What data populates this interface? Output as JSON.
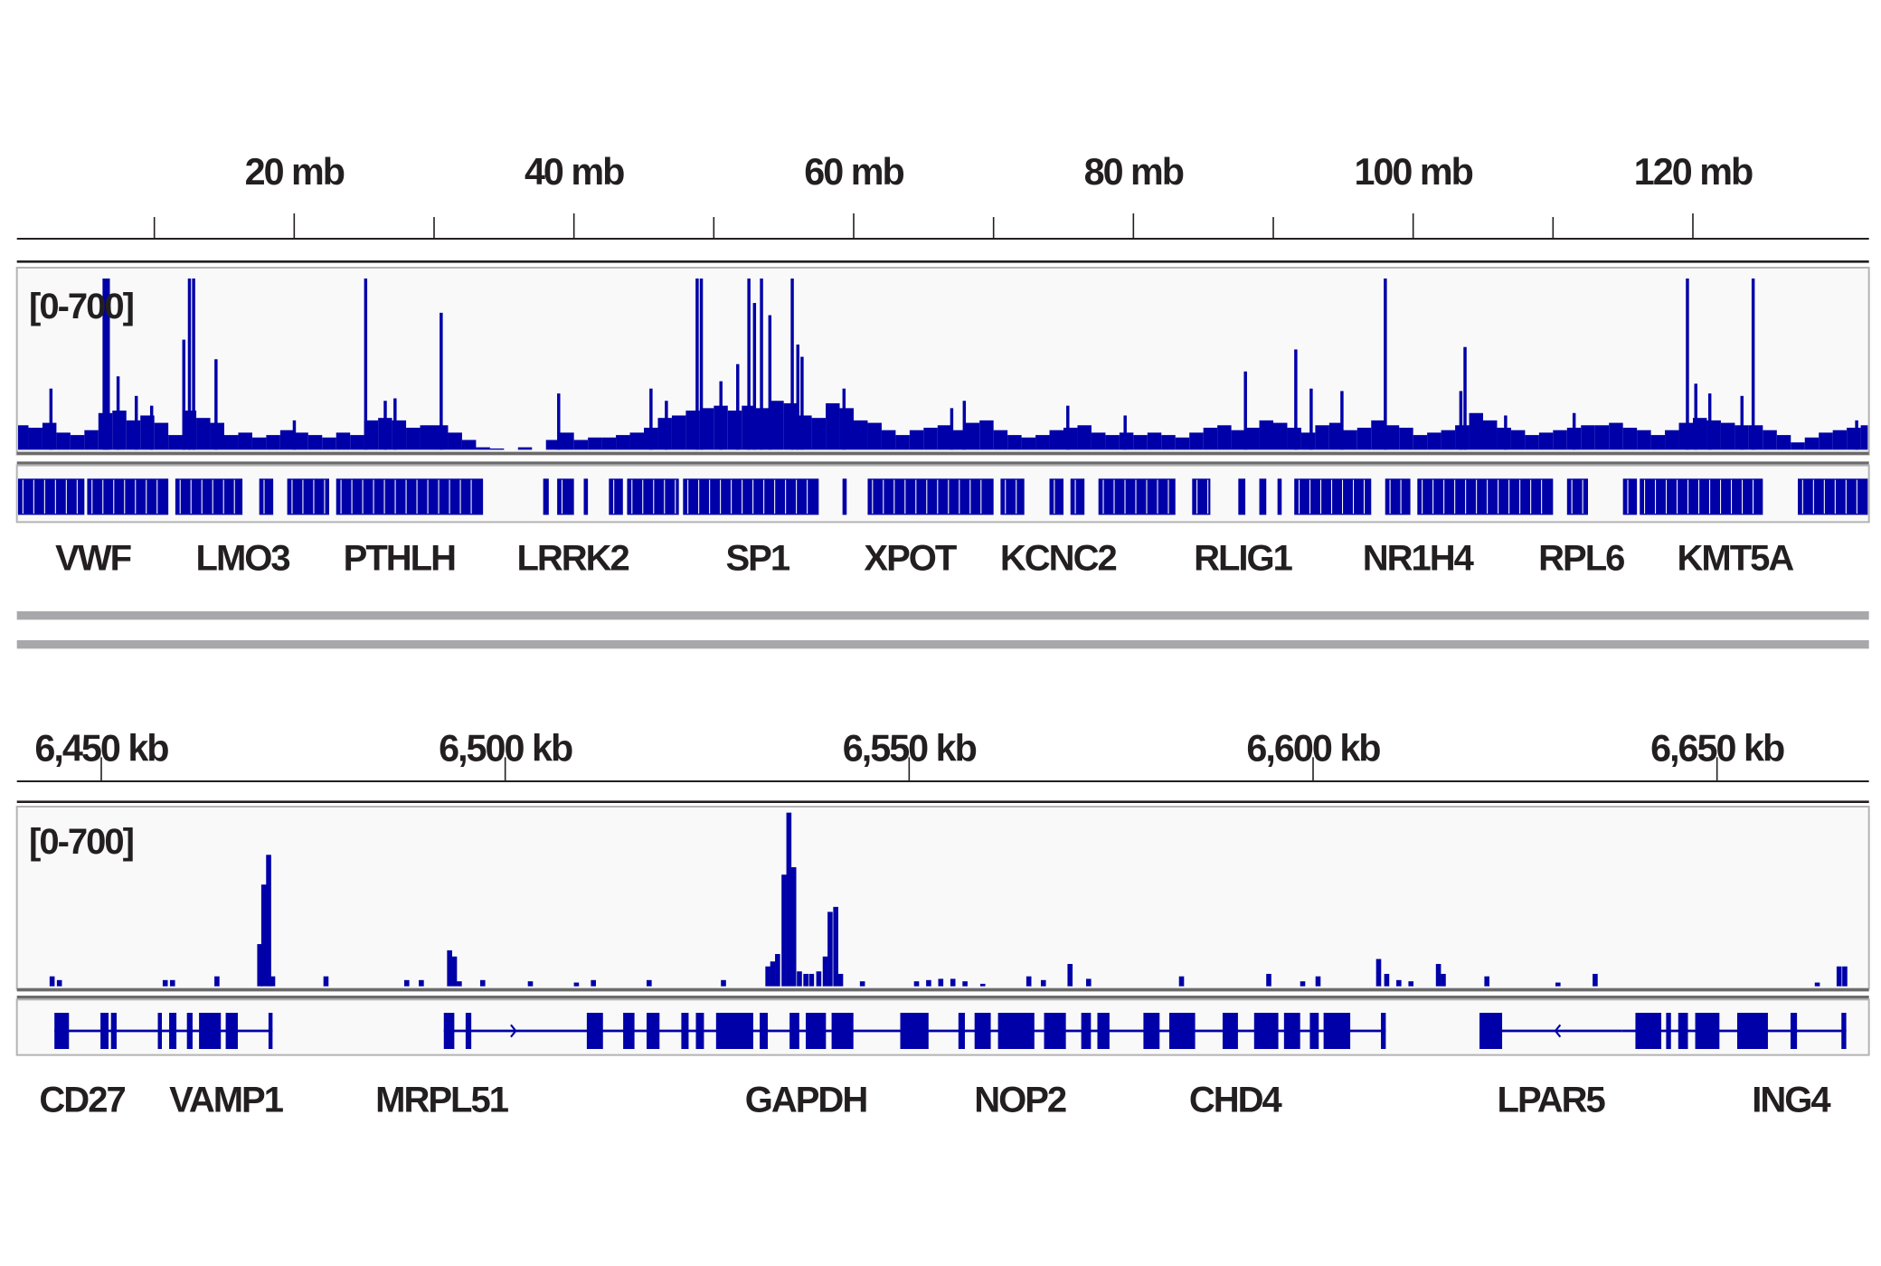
{
  "colors": {
    "signal": "#0000a8",
    "gene": "#0000a8",
    "axis": "#231f20",
    "track_bg": "#f9f9f9",
    "track_border": "#b4b4b4",
    "separator": "#a8a8aa"
  },
  "chart_data": [
    {
      "type": "bar",
      "panel": "chromosome overview",
      "x_unit": "mb",
      "xlim": [
        0.2,
        132.6
      ],
      "ylim": [
        0,
        700
      ],
      "range_label": "[0-700]",
      "ticks": [
        {
          "value": 10,
          "label": ""
        },
        {
          "value": 20,
          "label": "20 mb"
        },
        {
          "value": 30,
          "label": ""
        },
        {
          "value": 40,
          "label": "40 mb"
        },
        {
          "value": 50,
          "label": ""
        },
        {
          "value": 60,
          "label": "60 mb"
        },
        {
          "value": 70,
          "label": ""
        },
        {
          "value": 80,
          "label": "80 mb"
        },
        {
          "value": 90,
          "label": ""
        },
        {
          "value": 100,
          "label": "100 mb"
        },
        {
          "value": 110,
          "label": ""
        },
        {
          "value": 120,
          "label": "120 mb"
        }
      ],
      "background_bins_1mb": [
        100,
        90,
        110,
        70,
        60,
        80,
        150,
        160,
        120,
        140,
        110,
        60,
        160,
        130,
        110,
        60,
        70,
        50,
        60,
        80,
        70,
        60,
        50,
        70,
        60,
        120,
        130,
        120,
        90,
        100,
        100,
        70,
        40,
        10,
        5,
        0,
        10,
        0,
        40,
        70,
        40,
        50,
        50,
        60,
        70,
        90,
        130,
        140,
        160,
        170,
        180,
        160,
        180,
        170,
        200,
        190,
        140,
        130,
        190,
        170,
        120,
        110,
        80,
        60,
        80,
        90,
        100,
        80,
        110,
        120,
        80,
        60,
        50,
        60,
        80,
        90,
        100,
        70,
        60,
        70,
        60,
        70,
        60,
        50,
        70,
        90,
        100,
        80,
        90,
        120,
        110,
        90,
        70,
        100,
        110,
        80,
        90,
        120,
        100,
        90,
        60,
        70,
        80,
        100,
        150,
        120,
        90,
        80,
        60,
        70,
        80,
        90,
        100,
        100,
        110,
        90,
        80,
        60,
        80,
        110,
        130,
        120,
        110,
        100,
        100,
        80,
        60,
        30,
        50,
        70,
        80,
        90,
        100
      ],
      "peaks": [
        [
          2.6,
          250
        ],
        [
          6.4,
          700
        ],
        [
          6.55,
          700
        ],
        [
          6.7,
          700
        ],
        [
          7.4,
          300
        ],
        [
          8.7,
          220
        ],
        [
          9.8,
          180
        ],
        [
          12.1,
          450
        ],
        [
          12.5,
          700
        ],
        [
          12.8,
          700
        ],
        [
          14.4,
          370
        ],
        [
          20,
          120
        ],
        [
          25.1,
          700
        ],
        [
          26.5,
          200
        ],
        [
          27.2,
          210
        ],
        [
          30.5,
          560
        ],
        [
          38.9,
          230
        ],
        [
          45.5,
          250
        ],
        [
          46.6,
          200
        ],
        [
          48.8,
          700
        ],
        [
          49.1,
          700
        ],
        [
          50.5,
          280
        ],
        [
          51.7,
          350
        ],
        [
          52.5,
          700
        ],
        [
          52.9,
          600
        ],
        [
          53.4,
          700
        ],
        [
          54.0,
          550
        ],
        [
          55.6,
          700
        ],
        [
          56.0,
          430
        ],
        [
          56.3,
          380
        ],
        [
          59.3,
          250
        ],
        [
          67.0,
          170
        ],
        [
          67.9,
          200
        ],
        [
          75.3,
          180
        ],
        [
          79.4,
          140
        ],
        [
          88.0,
          320
        ],
        [
          91.6,
          410
        ],
        [
          92.7,
          250
        ],
        [
          94.9,
          240
        ],
        [
          98.0,
          700
        ],
        [
          103.4,
          240
        ],
        [
          103.7,
          420
        ],
        [
          106.6,
          140
        ],
        [
          111.5,
          150
        ],
        [
          119.6,
          700
        ],
        [
          120.2,
          270
        ],
        [
          121.2,
          230
        ],
        [
          123.5,
          220
        ],
        [
          124.3,
          700
        ],
        [
          131.7,
          120
        ]
      ],
      "gene_blocks_mb": [
        [
          0.2,
          5
        ],
        [
          5.2,
          11
        ],
        [
          11.5,
          16.3
        ],
        [
          17.5,
          18.5
        ],
        [
          19.5,
          22.5
        ],
        [
          23,
          33.5
        ],
        [
          37.8,
          38.2
        ],
        [
          38.8,
          40
        ],
        [
          40.7,
          41
        ],
        [
          42.5,
          43.5
        ],
        [
          43.8,
          47.5
        ],
        [
          47.8,
          57.5
        ],
        [
          59.2,
          59.5
        ],
        [
          61,
          70
        ],
        [
          70.5,
          72.2
        ],
        [
          74,
          75
        ],
        [
          75.5,
          76.5
        ],
        [
          77.5,
          83
        ],
        [
          84.2,
          85.5
        ],
        [
          87.5,
          88
        ],
        [
          89,
          89.5
        ],
        [
          90.3,
          90.6
        ],
        [
          91.5,
          97
        ],
        [
          98,
          99.8
        ],
        [
          100.3,
          110
        ],
        [
          111,
          112.5
        ],
        [
          115,
          116
        ],
        [
          116.2,
          125
        ],
        [
          127.5,
          132.6
        ]
      ],
      "genes": [
        {
          "name": "VWF",
          "pos": 5.6
        },
        {
          "name": "LMO3",
          "pos": 16.3
        },
        {
          "name": "PTHLH",
          "pos": 27.5
        },
        {
          "name": "LRRK2",
          "pos": 39.9
        },
        {
          "name": "SP1",
          "pos": 53.1
        },
        {
          "name": "XPOT",
          "pos": 64.0
        },
        {
          "name": "KCNC2",
          "pos": 74.6
        },
        {
          "name": "RLIG1",
          "pos": 87.8
        },
        {
          "name": "NR1H4",
          "pos": 100.3
        },
        {
          "name": "RPL6",
          "pos": 112.0
        },
        {
          "name": "KMT5A",
          "pos": 123.0
        }
      ]
    },
    {
      "type": "bar",
      "panel": "zoomed locus",
      "x_unit": "kb",
      "xlim": [
        6439.6,
        6668.8
      ],
      "ylim": [
        0,
        700
      ],
      "range_label": "[0-700]",
      "ticks": [
        {
          "value": 6450,
          "label": "6,450 kb"
        },
        {
          "value": 6500,
          "label": "6,500 kb"
        },
        {
          "value": 6550,
          "label": "6,550 kb"
        },
        {
          "value": 6600,
          "label": "6,600 kb"
        },
        {
          "value": 6650,
          "label": "6,650 kb"
        }
      ],
      "signal": [
        [
          6443.9,
          40
        ],
        [
          6444.8,
          25
        ],
        [
          6457.9,
          25
        ],
        [
          6458.8,
          25
        ],
        [
          6464.3,
          40
        ],
        [
          6469.6,
          170
        ],
        [
          6470.1,
          410
        ],
        [
          6470.7,
          530
        ],
        [
          6471.2,
          40
        ],
        [
          6477.8,
          40
        ],
        [
          6487.8,
          25
        ],
        [
          6489.6,
          25
        ],
        [
          6493.1,
          145
        ],
        [
          6493.7,
          120
        ],
        [
          6494.3,
          20
        ],
        [
          6497.2,
          25
        ],
        [
          6503.1,
          20
        ],
        [
          6508.8,
          15
        ],
        [
          6510.9,
          25
        ],
        [
          6517.8,
          25
        ],
        [
          6527.0,
          25
        ],
        [
          6532.5,
          80
        ],
        [
          6533.1,
          100
        ],
        [
          6533.7,
          130
        ],
        [
          6534.5,
          450
        ],
        [
          6535.1,
          700
        ],
        [
          6535.7,
          480
        ],
        [
          6536.4,
          60
        ],
        [
          6537.2,
          50
        ],
        [
          6537.9,
          50
        ],
        [
          6538.8,
          60
        ],
        [
          6539.6,
          120
        ],
        [
          6540.2,
          300
        ],
        [
          6540.9,
          320
        ],
        [
          6541.5,
          50
        ],
        [
          6544.2,
          20
        ],
        [
          6550.9,
          20
        ],
        [
          6552.4,
          25
        ],
        [
          6553.9,
          30
        ],
        [
          6555.4,
          30
        ],
        [
          6556.9,
          20
        ],
        [
          6559.1,
          10
        ],
        [
          6564.8,
          40
        ],
        [
          6566.6,
          25
        ],
        [
          6569.9,
          90
        ],
        [
          6572.2,
          30
        ],
        [
          6583.7,
          40
        ],
        [
          6594.5,
          50
        ],
        [
          6598.7,
          20
        ],
        [
          6600.6,
          40
        ],
        [
          6608.1,
          110
        ],
        [
          6609.1,
          50
        ],
        [
          6610.6,
          25
        ],
        [
          6612.1,
          20
        ],
        [
          6615.5,
          90
        ],
        [
          6616.1,
          50
        ],
        [
          6621.5,
          40
        ],
        [
          6630.3,
          15
        ],
        [
          6634.9,
          50
        ],
        [
          6662.4,
          15
        ],
        [
          6665.1,
          80
        ],
        [
          6665.8,
          80
        ]
      ],
      "transcripts": [
        {
          "span": [
            6444.2,
            6471.2
          ],
          "strand": "",
          "exons": [
            [
              6444.2,
              6446
            ],
            [
              6449.9,
              6450.9
            ],
            [
              6451.2,
              6451.9
            ],
            [
              6457,
              6457.5
            ],
            [
              6458.4,
              6459.3
            ],
            [
              6460.6,
              6461.3
            ],
            [
              6462.1,
              6464.8
            ],
            [
              6465.4,
              6466.9
            ],
            [
              6470.7,
              6471.2
            ]
          ]
        },
        {
          "span": [
            6492.4,
            6609.0
          ],
          "strand": "+",
          "arrow": 6501.3,
          "exons": [
            [
              6492.4,
              6493.7
            ],
            [
              6495.1,
              6495.8
            ],
            [
              6510.1,
              6512.1
            ],
            [
              6514.6,
              6516.0
            ],
            [
              6517.5,
              6519.1
            ],
            [
              6521.8,
              6522.7
            ],
            [
              6523.6,
              6524.6
            ],
            [
              6526.1,
              6530.7
            ],
            [
              6531.5,
              6532.5
            ],
            [
              6535.2,
              6536.4
            ],
            [
              6537.2,
              6539.7
            ],
            [
              6540.4,
              6543.1
            ],
            [
              6548.9,
              6552.4
            ],
            [
              6556.1,
              6556.9
            ],
            [
              6558.1,
              6560.1
            ],
            [
              6561.0,
              6565.5
            ],
            [
              6566.7,
              6569.4
            ],
            [
              6571.3,
              6572.5
            ],
            [
              6573.3,
              6574.8
            ],
            [
              6579.0,
              6581.0
            ],
            [
              6582.2,
              6585.4
            ],
            [
              6588.8,
              6590.7
            ],
            [
              6592.7,
              6595.7
            ],
            [
              6596.4,
              6598.4
            ],
            [
              6599.6,
              6600.7
            ],
            [
              6601.3,
              6604.6
            ],
            [
              6608.4,
              6609.0
            ]
          ]
        },
        {
          "span": [
            6620.6,
            6638.2
          ],
          "strand": "-",
          "arrow": 6630.0,
          "exons": [
            [
              6620.6,
              6623.4
            ]
          ]
        },
        {
          "span": [
            6638.2,
            6666.0
          ],
          "strand": "",
          "exons": [
            [
              6639.9,
              6643.1
            ],
            [
              6643.7,
              6644.3
            ],
            [
              6645.2,
              6646.4
            ],
            [
              6647.3,
              6650.3
            ],
            [
              6652.5,
              6656.3
            ],
            [
              6659.1,
              6659.9
            ],
            [
              6665.4,
              6666.0
            ]
          ]
        }
      ],
      "genes": [
        {
          "name": "CD27",
          "pos": 6447.6
        },
        {
          "name": "VAMP1",
          "pos": 6465.4
        },
        {
          "name": "MRPL51",
          "pos": 6492.1
        },
        {
          "name": "GAPDH",
          "pos": 6537.2
        },
        {
          "name": "NOP2",
          "pos": 6563.7
        },
        {
          "name": "CHD4",
          "pos": 6590.3
        },
        {
          "name": "LPAR5",
          "pos": 6629.4
        },
        {
          "name": "ING4",
          "pos": 6659.1
        }
      ]
    }
  ]
}
